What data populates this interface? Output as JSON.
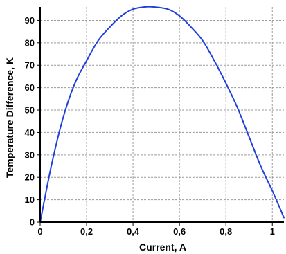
{
  "chart_data": {
    "type": "line",
    "title": "",
    "xlabel": "Current, A",
    "ylabel": "Temperature Difference, K",
    "xlim": [
      0,
      1.05
    ],
    "ylim": [
      0,
      96
    ],
    "grid": true,
    "legend": "none",
    "x_ticks": [
      {
        "value": 0,
        "label": "0"
      },
      {
        "value": 0.2,
        "label": "0,2"
      },
      {
        "value": 0.4,
        "label": "0,4"
      },
      {
        "value": 0.6,
        "label": "0,6"
      },
      {
        "value": 0.8,
        "label": "0,8"
      },
      {
        "value": 1.0,
        "label": "1"
      }
    ],
    "y_ticks": [
      {
        "value": 0,
        "label": "0"
      },
      {
        "value": 10,
        "label": "10"
      },
      {
        "value": 20,
        "label": "20"
      },
      {
        "value": 30,
        "label": "30"
      },
      {
        "value": 40,
        "label": "40"
      },
      {
        "value": 50,
        "label": "50"
      },
      {
        "value": 60,
        "label": "60"
      },
      {
        "value": 70,
        "label": "70"
      },
      {
        "value": 80,
        "label": "80"
      },
      {
        "value": 90,
        "label": "90"
      }
    ],
    "series": [
      {
        "color": "#1f3fdc",
        "x": [
          0,
          0.05,
          0.1,
          0.15,
          0.2,
          0.25,
          0.3,
          0.35,
          0.4,
          0.45,
          0.49,
          0.55,
          0.6,
          0.65,
          0.7,
          0.75,
          0.8,
          0.85,
          0.9,
          0.95,
          1.0,
          1.05
        ],
        "y": [
          0,
          26,
          47,
          62,
          72,
          81,
          87,
          92,
          95,
          96,
          96,
          95,
          92,
          87,
          81,
          72,
          62,
          51,
          38,
          25,
          14,
          2
        ]
      }
    ]
  },
  "colors": {
    "curve": "#1f3fdc",
    "grid": "#9a9a9a",
    "axes": "#000000",
    "background": "#ffffff"
  }
}
